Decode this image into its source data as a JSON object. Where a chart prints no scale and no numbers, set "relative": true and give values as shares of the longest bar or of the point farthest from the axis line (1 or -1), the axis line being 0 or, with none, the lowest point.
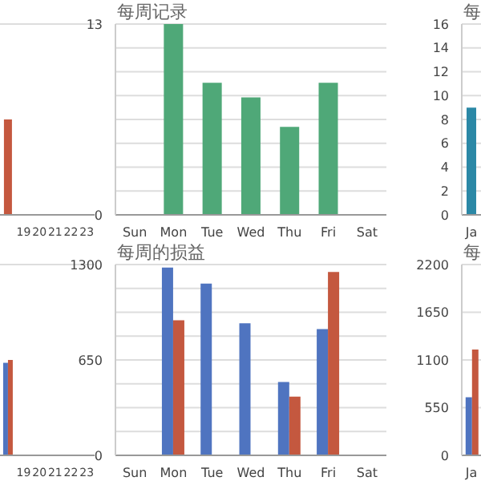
{
  "chart_data": [
    {
      "type": "bar",
      "relative": true,
      "categories": [
        null,
        "19",
        "20",
        "21",
        "22",
        "23"
      ],
      "values": [
        1,
        null,
        null,
        null,
        null,
        null
      ],
      "color": "#c4583f",
      "grid": "y",
      "tick_labels": "x"
    },
    {
      "type": "bar",
      "title": "每周记录",
      "categories": [
        "Sun",
        "Mon",
        "Tue",
        "Wed",
        "Thu",
        "Fri",
        "Sat"
      ],
      "values": [
        0,
        13,
        9,
        8,
        6,
        9,
        0
      ],
      "color": "#4fa878",
      "ylim": [
        0,
        13
      ],
      "yticks": [
        0,
        {
          "value": 1.625,
          "label": null
        },
        {
          "value": 3.25,
          "label": null
        },
        {
          "value": 4.875,
          "label": null
        },
        {
          "value": 6.5,
          "label": null
        },
        {
          "value": 8.125,
          "label": null
        },
        {
          "value": 9.75,
          "label": null
        },
        {
          "value": 11.375,
          "label": null
        },
        13
      ],
      "grid": "y"
    },
    {
      "type": "bar",
      "title": "每",
      "categories": [
        "Ja"
      ],
      "values": [
        9
      ],
      "color": "#2b88a6",
      "ylim": [
        0,
        16
      ],
      "yticks": [
        0,
        2,
        4,
        6,
        8,
        10,
        12,
        14,
        16
      ],
      "grid": "y"
    },
    {
      "type": "bar",
      "relative": true,
      "categories": [
        null,
        "19",
        "20",
        "21",
        "22",
        "23"
      ],
      "series": [
        {
          "color": "#4f74c0",
          "values": [
            0.97,
            null,
            null,
            null,
            null,
            null
          ]
        },
        {
          "color": "#c4583f",
          "values": [
            1,
            null,
            null,
            null,
            null,
            null
          ]
        }
      ],
      "grid": "y",
      "tick_labels": "x"
    },
    {
      "type": "bar",
      "title": "每周的损益",
      "categories": [
        "Sun",
        "Mon",
        "Tue",
        "Wed",
        "Thu",
        "Fri",
        "Sat"
      ],
      "series": [
        {
          "color": "#4f74c0",
          "values": [
            0,
            1280,
            1170,
            900,
            500,
            860,
            0
          ]
        },
        {
          "color": "#c4583f",
          "values": [
            0,
            920,
            0,
            0,
            400,
            1250,
            0
          ]
        }
      ],
      "ylim": [
        0,
        1300
      ],
      "yticks": [
        0,
        {
          "value": 162.5,
          "label": null
        },
        {
          "value": 325,
          "label": null
        },
        {
          "value": 487.5,
          "label": null
        },
        650,
        {
          "value": 812.5,
          "label": null
        },
        {
          "value": 975,
          "label": null
        },
        {
          "value": 1137.5,
          "label": null
        },
        1300
      ],
      "grid": "y"
    },
    {
      "type": "bar",
      "title": "每",
      "categories": [
        "Ja"
      ],
      "series": [
        {
          "color": "#4f74c0",
          "values": [
            670
          ]
        },
        {
          "color": "#c4583f",
          "values": [
            1220
          ]
        }
      ],
      "ylim": [
        0,
        2200
      ],
      "yticks": [
        0,
        550,
        1100,
        1650,
        2200
      ],
      "grid": "y"
    }
  ]
}
